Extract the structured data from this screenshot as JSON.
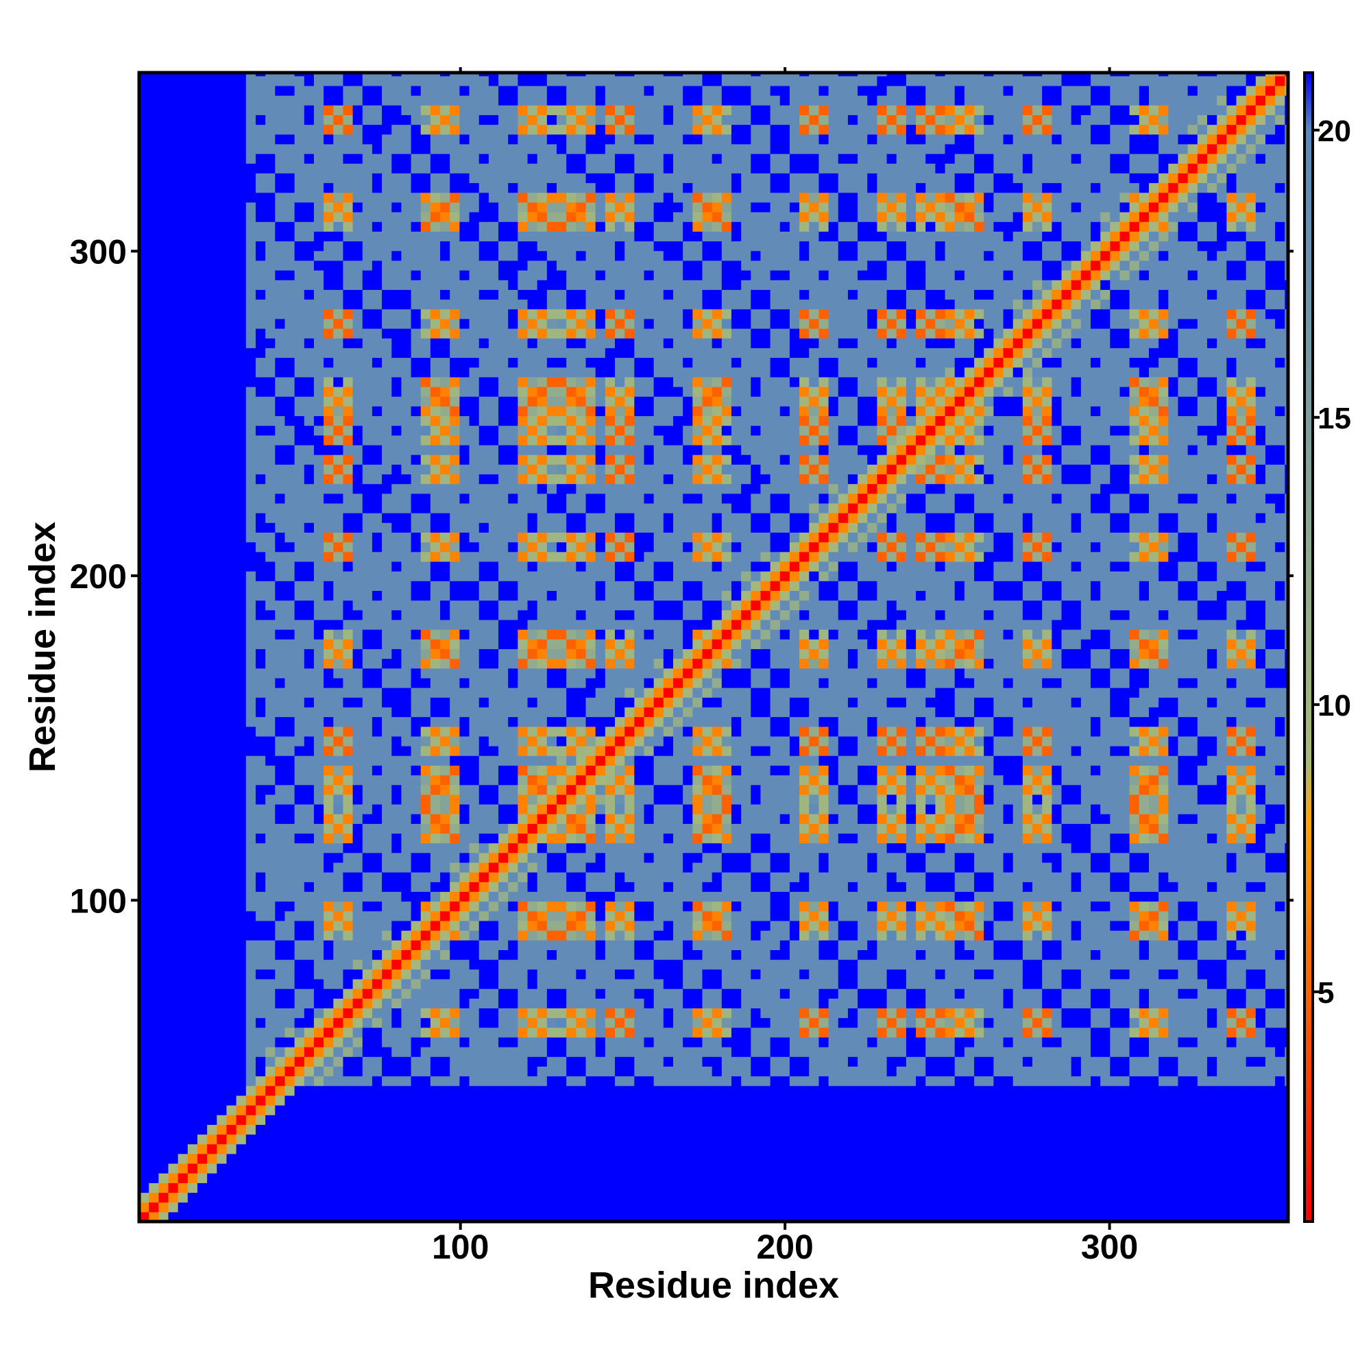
{
  "chart_data": {
    "type": "heatmap",
    "title": "",
    "xlabel": "Residue index",
    "ylabel": "Residue index",
    "n_residues": 355,
    "xlim": [
      1,
      355
    ],
    "ylim": [
      1,
      355
    ],
    "x_ticks": [
      100,
      200,
      300
    ],
    "y_ticks": [
      100,
      200,
      300
    ],
    "x_tick_labels": [
      "100",
      "200",
      "300"
    ],
    "y_tick_labels": [
      "100",
      "200",
      "300"
    ],
    "colorbar": {
      "range": [
        1,
        21
      ],
      "ticks": [
        5,
        10,
        15,
        20
      ],
      "tick_labels": [
        "5",
        "10",
        "15",
        "20"
      ],
      "placement": "right"
    },
    "color_stops": [
      {
        "value": 1,
        "color": "#ff0000"
      },
      {
        "value": 4,
        "color": "#ff4a00"
      },
      {
        "value": 8,
        "color": "#ffa500"
      },
      {
        "value": 9,
        "color": "#a8b97a"
      },
      {
        "value": 20,
        "color": "#5b88bd"
      },
      {
        "value": 21,
        "color": "#0000ff"
      }
    ],
    "structured_region": {
      "x_start": 35,
      "y_start": 42
    },
    "helices": [
      {
        "start": 57,
        "end": 67
      },
      {
        "start": 89,
        "end": 99
      },
      {
        "start": 118,
        "end": 128
      },
      {
        "start": 131,
        "end": 141
      },
      {
        "start": 144,
        "end": 154
      },
      {
        "start": 172,
        "end": 182
      },
      {
        "start": 204,
        "end": 214
      },
      {
        "start": 228,
        "end": 238
      },
      {
        "start": 240,
        "end": 250
      },
      {
        "start": 250,
        "end": 260
      },
      {
        "start": 273,
        "end": 283
      },
      {
        "start": 308,
        "end": 318
      },
      {
        "start": 336,
        "end": 346
      }
    ],
    "grid": false,
    "legend": "none"
  }
}
